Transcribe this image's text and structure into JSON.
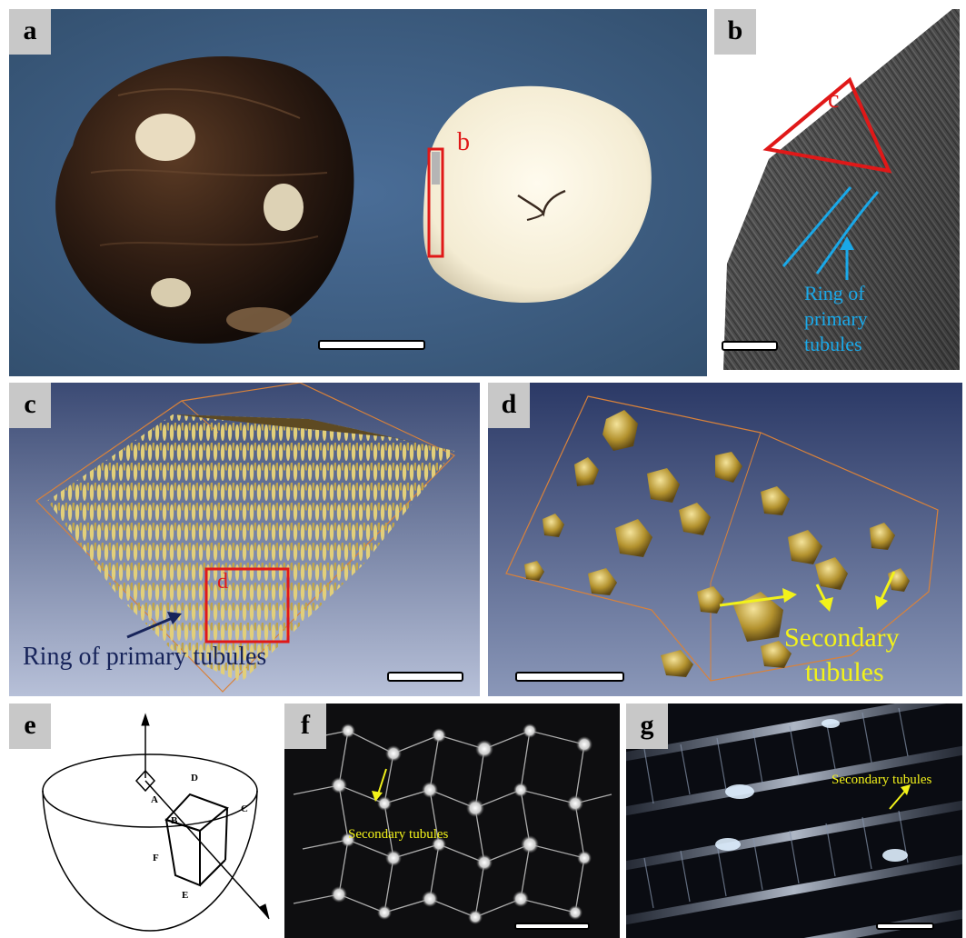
{
  "panels": {
    "a": {
      "tag": "a",
      "inset_label": "b"
    },
    "b": {
      "tag": "b",
      "inset_label": "c",
      "annotation": [
        "Ring of",
        "primary",
        "tubules"
      ]
    },
    "c": {
      "tag": "c",
      "inset_label": "d",
      "annotation": "Ring of primary tubules"
    },
    "d": {
      "tag": "d",
      "annotation": [
        "Secondary",
        "tubules"
      ]
    },
    "e": {
      "tag": "e",
      "vertices": [
        "A",
        "B",
        "C",
        "D",
        "E",
        "F"
      ]
    },
    "f": {
      "tag": "f",
      "annotation": "Secondary tubules"
    },
    "g": {
      "tag": "g",
      "annotation": "Secondary tubules"
    }
  },
  "colors": {
    "red_marker": "#e01818",
    "cyan_annotation": "#1aa8e8",
    "navy_annotation": "#17245a",
    "yellow_annotation": "#f2f21a",
    "fabric_blue": "#3e5f86",
    "render_gold": "#d9c36a"
  }
}
